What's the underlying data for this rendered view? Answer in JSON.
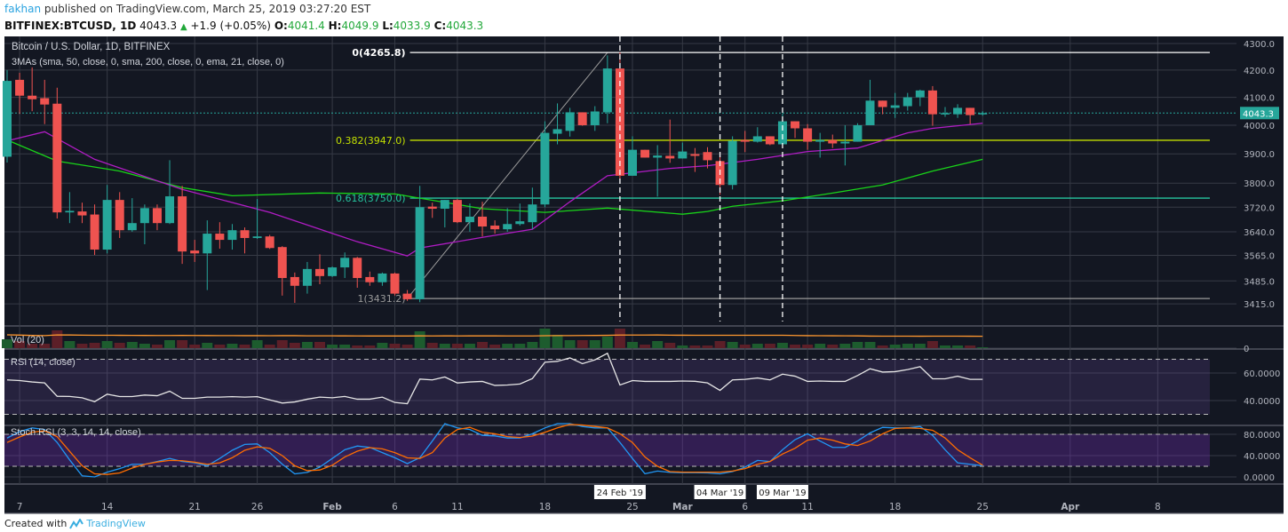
{
  "header": {
    "author": "fakhan",
    "published": "published on TradingView.com, March 25, 2019 03:27:20 EST",
    "symbol": "BITFINEX:BTCUSD, 1D",
    "last": "4043.3",
    "change": "+1.9 (+0.05%)",
    "o_label": "O:",
    "o": "4041.4",
    "h_label": "H:",
    "h": "4049.9",
    "l_label": "L:",
    "l": "4033.9",
    "c_label": "C:",
    "c": "4043.3",
    "up_icon": "triangle-up-icon"
  },
  "legend": {
    "title": "Bitcoin / U.S. Dollar, 1D, BITFINEX",
    "mas": "3MAs (sma, 50, close, 0, sma, 200, close, 0, ema, 21, close, 0)",
    "vol": "Vol (20)",
    "rsi": "RSI (14, close)",
    "stoch": "Stoch RSI (3, 3, 14, 14, close)"
  },
  "footer": {
    "created_with": "Created with",
    "brand": "TradingView",
    "logo_icon": "tradingview-logo-icon"
  },
  "colors": {
    "up": "#26a69a",
    "down": "#ef5350",
    "ema21": "#b01cc4",
    "sma50": "#19d419",
    "rsi": "#e6e6e6",
    "stoch_k": "#2196f3",
    "stoch_d": "#ff6d00",
    "vol_ma": "#ff9830",
    "background": "#131722",
    "fib_0": "#ffffff",
    "fib_382": "#c3e000",
    "fib_618": "#26c6a0",
    "fib_1": "#9a9a9a"
  },
  "chart_data": {
    "type": "candlestick",
    "price_scale": "log",
    "price_ticks": [
      "4300.0",
      "4200.0",
      "4100.0",
      "4000.0",
      "3900.0",
      "3800.0",
      "3720.0",
      "3640.0",
      "3565.0",
      "3485.0",
      "3415.0"
    ],
    "current_price_label": "4043.3",
    "time_ticks": [
      {
        "date": "2019-01-07",
        "label": "7"
      },
      {
        "date": "2019-01-14",
        "label": "14"
      },
      {
        "date": "2019-01-21",
        "label": "21"
      },
      {
        "date": "2019-01-26",
        "label": "26"
      },
      {
        "date": "2019-02-01",
        "label": "Feb",
        "bold": true
      },
      {
        "date": "2019-02-06",
        "label": "6"
      },
      {
        "date": "2019-02-11",
        "label": "11"
      },
      {
        "date": "2019-02-18",
        "label": "18"
      },
      {
        "date": "2019-02-25",
        "label": "25"
      },
      {
        "date": "2019-03-01",
        "label": "Mar",
        "bold": true
      },
      {
        "date": "2019-03-06",
        "label": "6"
      },
      {
        "date": "2019-03-11",
        "label": "11"
      },
      {
        "date": "2019-03-18",
        "label": "18"
      },
      {
        "date": "2019-03-25",
        "label": "25"
      },
      {
        "date": "2019-04-01",
        "label": "Apr",
        "bold": true
      },
      {
        "date": "2019-04-08",
        "label": "8"
      }
    ],
    "date_markers": [
      {
        "date": "2019-02-24",
        "label": "24 Feb '19"
      },
      {
        "date": "2019-03-04",
        "label": "04 Mar '19"
      },
      {
        "date": "2019-03-09",
        "label": "09 Mar '19"
      }
    ],
    "fibonacci": {
      "from": {
        "date": "2019-02-07",
        "price": 3431.2
      },
      "to": {
        "date": "2019-02-23",
        "price": 4265.8
      },
      "levels": [
        {
          "label": "0(4265.8)",
          "price": 4265.8,
          "color": "#ffffff"
        },
        {
          "label": "0.382(3947.0)",
          "price": 3947.0,
          "color": "#c3e000"
        },
        {
          "label": "0.618(3750.0)",
          "price": 3750.0,
          "color": "#26c6a0"
        },
        {
          "label": "1(3431.2)",
          "price": 3431.2,
          "color": "#9a9a9a"
        }
      ]
    },
    "start_date": "2019-01-06",
    "ohlc": [
      [
        3890,
        4200,
        3870,
        4160
      ],
      [
        4164,
        4190,
        4040,
        4106
      ],
      [
        4106,
        4210,
        4050,
        4093
      ],
      [
        4097,
        4164,
        4004,
        4074
      ],
      [
        4077,
        4135,
        3683,
        3703
      ],
      [
        3703,
        3770,
        3668,
        3708
      ],
      [
        3706,
        3735,
        3668,
        3693
      ],
      [
        3696,
        3729,
        3566,
        3583
      ],
      [
        3583,
        3794,
        3571,
        3744
      ],
      [
        3744,
        3770,
        3620,
        3645
      ],
      [
        3645,
        3750,
        3640,
        3668
      ],
      [
        3668,
        3729,
        3600,
        3717
      ],
      [
        3717,
        3729,
        3645,
        3668
      ],
      [
        3668,
        3878,
        3665,
        3756
      ],
      [
        3756,
        3791,
        3538,
        3577
      ],
      [
        3580,
        3614,
        3544,
        3571
      ],
      [
        3571,
        3677,
        3457,
        3634
      ],
      [
        3634,
        3671,
        3586,
        3614
      ],
      [
        3614,
        3665,
        3583,
        3645
      ],
      [
        3645,
        3654,
        3571,
        3620
      ],
      [
        3620,
        3747,
        3617,
        3625
      ],
      [
        3625,
        3630,
        3585,
        3588
      ],
      [
        3591,
        3594,
        3440,
        3494
      ],
      [
        3497,
        3511,
        3418,
        3470
      ],
      [
        3470,
        3544,
        3446,
        3522
      ],
      [
        3522,
        3568,
        3475,
        3500
      ],
      [
        3500,
        3530,
        3497,
        3527
      ],
      [
        3527,
        3574,
        3494,
        3557
      ],
      [
        3557,
        3560,
        3464,
        3494
      ],
      [
        3497,
        3514,
        3470,
        3481
      ],
      [
        3481,
        3511,
        3470,
        3508
      ],
      [
        3508,
        3511,
        3440,
        3446
      ],
      [
        3446,
        3457,
        3424,
        3429
      ],
      [
        3429,
        3791,
        3420,
        3720
      ],
      [
        3722,
        3735,
        3685,
        3715
      ],
      [
        3715,
        3744,
        3654,
        3744
      ],
      [
        3744,
        3747,
        3668,
        3671
      ],
      [
        3671,
        3732,
        3640,
        3689
      ],
      [
        3689,
        3738,
        3625,
        3657
      ],
      [
        3660,
        3677,
        3634,
        3648
      ],
      [
        3648,
        3717,
        3640,
        3665
      ],
      [
        3665,
        3732,
        3660,
        3674
      ],
      [
        3671,
        3785,
        3648,
        3729
      ],
      [
        3729,
        4014,
        3720,
        3973
      ],
      [
        3970,
        4078,
        3933,
        3986
      ],
      [
        3980,
        4062,
        3960,
        4046
      ],
      [
        4046,
        4046,
        3998,
        4000
      ],
      [
        4000,
        4068,
        3980,
        4049
      ],
      [
        4046,
        4255,
        4007,
        4206
      ],
      [
        4206,
        4265.8,
        3812,
        3825
      ],
      [
        3825,
        3961,
        3825,
        3914
      ],
      [
        3914,
        3914,
        3887,
        3887
      ],
      [
        3887,
        3930,
        3755,
        3894
      ],
      [
        3893,
        4020,
        3869,
        3884
      ],
      [
        3884,
        3939,
        3884,
        3908
      ],
      [
        3899,
        3920,
        3838,
        3893
      ],
      [
        3906,
        3923,
        3850,
        3878
      ],
      [
        3875,
        3906,
        3761,
        3794
      ],
      [
        3794,
        3961,
        3779,
        3945
      ],
      [
        3948,
        3980,
        3906,
        3942
      ],
      [
        3942,
        3993,
        3939,
        3961
      ],
      [
        3961,
        3961,
        3930,
        3933
      ],
      [
        3933,
        4042,
        3930,
        4014
      ],
      [
        4014,
        4014,
        3955,
        3989
      ],
      [
        3989,
        4004,
        3914,
        3942
      ],
      [
        3942,
        3973,
        3887,
        3948
      ],
      [
        3948,
        3967,
        3920,
        3936
      ],
      [
        3936,
        4000,
        3860,
        3942
      ],
      [
        3942,
        4007,
        3942,
        4000
      ],
      [
        4000,
        4164,
        4000,
        4088
      ],
      [
        4088,
        4088,
        4039,
        4065
      ],
      [
        4062,
        4116,
        4026,
        4071
      ],
      [
        4068,
        4116,
        4052,
        4100
      ],
      [
        4100,
        4128,
        4068,
        4125
      ],
      [
        4125,
        4141,
        3998,
        4039
      ],
      [
        4039,
        4065,
        4030,
        4043
      ],
      [
        4039,
        4075,
        4026,
        4062
      ],
      [
        4062,
        4062,
        4004,
        4036
      ],
      [
        4041.4,
        4049.9,
        4033.9,
        4043.3
      ]
    ],
    "ema21": [
      [
        "2019-01-06",
        3945
      ],
      [
        "2019-01-09",
        3977
      ],
      [
        "2019-01-13",
        3881
      ],
      [
        "2019-01-20",
        3779
      ],
      [
        "2019-01-27",
        3703
      ],
      [
        "2019-02-03",
        3608
      ],
      [
        "2019-02-07",
        3563
      ],
      [
        "2019-02-08",
        3588
      ],
      [
        "2019-02-13",
        3622
      ],
      [
        "2019-02-17",
        3648
      ],
      [
        "2019-02-20",
        3738
      ],
      [
        "2019-02-23",
        3825
      ],
      [
        "2019-02-28",
        3850
      ],
      [
        "2019-03-03",
        3859
      ],
      [
        "2019-03-07",
        3881
      ],
      [
        "2019-03-11",
        3908
      ],
      [
        "2019-03-15",
        3920
      ],
      [
        "2019-03-19",
        3973
      ],
      [
        "2019-03-21",
        3989
      ],
      [
        "2019-03-25",
        4007
      ]
    ],
    "sma50": [
      [
        "2019-01-06",
        3948
      ],
      [
        "2019-01-10",
        3875
      ],
      [
        "2019-01-15",
        3841
      ],
      [
        "2019-01-20",
        3785
      ],
      [
        "2019-01-24",
        3758
      ],
      [
        "2019-01-31",
        3767
      ],
      [
        "2019-02-06",
        3764
      ],
      [
        "2019-02-08",
        3750
      ],
      [
        "2019-02-13",
        3715
      ],
      [
        "2019-02-18",
        3703
      ],
      [
        "2019-02-23",
        3717
      ],
      [
        "2019-03-01",
        3697
      ],
      [
        "2019-03-03",
        3706
      ],
      [
        "2019-03-05",
        3723
      ],
      [
        "2019-03-09",
        3741
      ],
      [
        "2019-03-13",
        3767
      ],
      [
        "2019-03-17",
        3794
      ],
      [
        "2019-03-21",
        3841
      ],
      [
        "2019-03-25",
        3881
      ]
    ],
    "volume_relative": [
      10,
      8,
      5,
      5,
      20,
      8,
      5,
      6,
      8,
      6,
      7,
      5,
      4,
      9,
      9,
      4,
      6,
      4,
      5,
      4,
      9,
      4,
      9,
      6,
      7,
      7,
      4,
      4,
      3,
      3,
      6,
      5,
      4,
      19,
      6,
      5,
      5,
      5,
      7,
      4,
      5,
      5,
      7,
      22,
      15,
      9,
      9,
      9,
      13,
      22,
      7,
      4,
      8,
      6,
      3,
      3,
      3,
      8,
      7,
      4,
      5,
      5,
      6,
      4,
      4,
      5,
      4,
      5,
      7,
      7,
      3,
      4,
      5,
      5,
      8,
      3,
      3,
      3,
      1
    ],
    "volume_ticks": [
      "0"
    ],
    "rsi": {
      "ticks": [
        "60.0000",
        "40.0000"
      ],
      "bands": [
        70,
        30
      ],
      "values": [
        55,
        54.5,
        53.5,
        52.8,
        43.1,
        43,
        42,
        39.2,
        44.6,
        42.9,
        42.9,
        44,
        43.5,
        46.8,
        41.6,
        41.6,
        42.5,
        42.5,
        42.8,
        42.5,
        42.8,
        40.5,
        38.2,
        39,
        41,
        42.5,
        42,
        43,
        41,
        41,
        42.5,
        38.6,
        37.7,
        55.6,
        55,
        57.1,
        52.8,
        53.5,
        53.9,
        51,
        51.3,
        52,
        56,
        67.8,
        68.5,
        71,
        66.8,
        69.6,
        74.3,
        51.3,
        54.5,
        53.9,
        53.9,
        53.9,
        54.2,
        54,
        52.8,
        47.4,
        55,
        55.4,
        56.4,
        55,
        59.2,
        57.7,
        53.9,
        54.2,
        53.9,
        53.9,
        58.2,
        63.1,
        60.7,
        61,
        62.5,
        64.6,
        55.8,
        55.8,
        57.7,
        55.4,
        55.4
      ]
    },
    "stoch_rsi": {
      "ticks": [
        "80.0000",
        "40.0000",
        "0.0000"
      ],
      "bands": [
        80,
        20
      ],
      "k": [
        72.9,
        85,
        92,
        89,
        64.7,
        32,
        2,
        0,
        9,
        15.6,
        23.8,
        23.8,
        29,
        34.7,
        29,
        26.5,
        21,
        34.7,
        50,
        61,
        62,
        45.6,
        24,
        5.8,
        8.6,
        18.4,
        34.7,
        51,
        58,
        55.4,
        45.6,
        36,
        25,
        36,
        67.4,
        100,
        92,
        89,
        78,
        77,
        73,
        73,
        81,
        92,
        100,
        100,
        94.7,
        92,
        92,
        64.7,
        34.7,
        6,
        11,
        8.6,
        8,
        8,
        7.5,
        5.8,
        10,
        18.4,
        31,
        29,
        51,
        70,
        81,
        67.4,
        55.4,
        55.4,
        67.4,
        82.7,
        93,
        92,
        92,
        94.7,
        78,
        51,
        26.5,
        23.8,
        21
      ],
      "d": [
        64.7,
        75,
        84,
        86.5,
        75.6,
        48,
        21,
        5.8,
        4.7,
        7.5,
        16.7,
        23.8,
        28,
        31,
        30.4,
        27.6,
        23.8,
        26.5,
        36,
        50,
        56.5,
        53.8,
        40,
        21,
        11.8,
        13,
        22,
        37.4,
        48.3,
        55,
        52.7,
        45.6,
        35.8,
        34.7,
        45.6,
        72.9,
        89,
        93,
        84,
        81,
        75.6,
        74,
        76.7,
        83.8,
        92,
        98.5,
        97.4,
        94.7,
        92,
        81,
        64.7,
        37.4,
        20,
        10,
        9,
        9,
        9,
        9,
        11,
        15.6,
        23.8,
        29,
        43,
        53.8,
        69,
        73,
        69,
        62,
        59,
        67.4,
        81,
        91,
        92,
        91,
        87.6,
        73,
        51,
        36,
        22
      ]
    }
  }
}
